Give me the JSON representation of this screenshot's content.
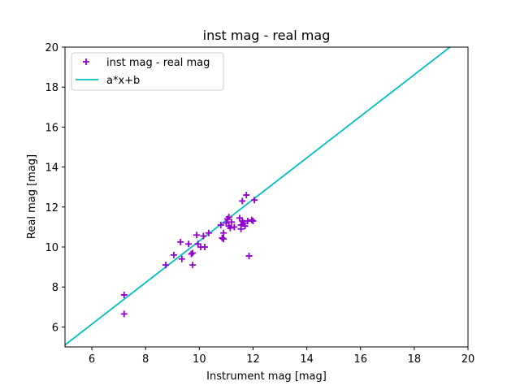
{
  "chart_data": {
    "type": "scatter",
    "title": "inst mag - real mag",
    "xlabel": "Instrument mag [mag]",
    "ylabel": "Real mag [mag]",
    "xlim": [
      5,
      20
    ],
    "ylim": [
      5,
      20
    ],
    "xticks": [
      "6",
      "8",
      "10",
      "12",
      "14",
      "16",
      "18",
      "20"
    ],
    "yticks": [
      "6",
      "8",
      "10",
      "12",
      "14",
      "16",
      "18",
      "20"
    ],
    "grid": false,
    "legend_position": "top-left",
    "series": [
      {
        "name": "inst mag - real mag",
        "kind": "scatter",
        "marker": "plus",
        "color": "#9400d3",
        "points": [
          [
            7.2,
            7.6
          ],
          [
            7.2,
            6.65
          ],
          [
            8.75,
            9.1
          ],
          [
            9.05,
            9.6
          ],
          [
            9.3,
            10.25
          ],
          [
            9.35,
            9.4
          ],
          [
            9.6,
            10.15
          ],
          [
            9.7,
            9.65
          ],
          [
            9.75,
            9.1
          ],
          [
            9.75,
            9.7
          ],
          [
            9.9,
            10.6
          ],
          [
            9.95,
            10.15
          ],
          [
            10.05,
            10.0
          ],
          [
            10.15,
            10.55
          ],
          [
            10.2,
            10.0
          ],
          [
            10.35,
            10.7
          ],
          [
            10.8,
            11.1
          ],
          [
            10.85,
            10.45
          ],
          [
            10.9,
            10.4
          ],
          [
            10.9,
            10.7
          ],
          [
            11.0,
            11.2
          ],
          [
            11.05,
            11.4
          ],
          [
            11.1,
            11.05
          ],
          [
            11.1,
            11.5
          ],
          [
            11.15,
            10.95
          ],
          [
            11.2,
            11.25
          ],
          [
            11.3,
            11.0
          ],
          [
            11.5,
            11.45
          ],
          [
            11.55,
            10.9
          ],
          [
            11.55,
            11.1
          ],
          [
            11.6,
            11.3
          ],
          [
            11.6,
            12.3
          ],
          [
            11.65,
            11.2
          ],
          [
            11.7,
            11.05
          ],
          [
            11.75,
            12.6
          ],
          [
            11.8,
            11.3
          ],
          [
            11.85,
            9.55
          ],
          [
            11.95,
            11.35
          ],
          [
            12.0,
            11.3
          ],
          [
            12.05,
            12.35
          ]
        ]
      },
      {
        "name": "a*x+b",
        "kind": "line",
        "color": "#00bfbf",
        "a": 1.04,
        "b": -0.1
      }
    ]
  }
}
